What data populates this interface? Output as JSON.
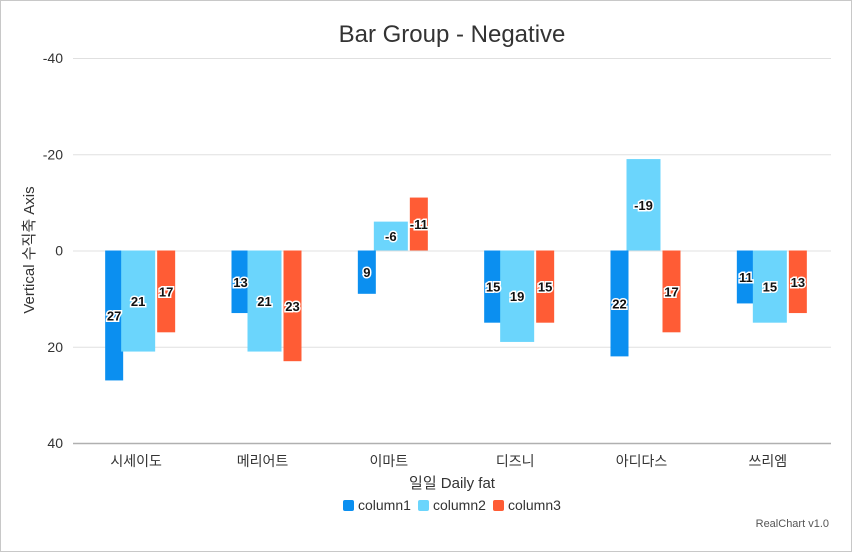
{
  "chart_data": {
    "type": "bar",
    "title": "Bar Group - Negative",
    "xlabel": "일일 Daily fat",
    "ylabel": "Vertical 수직축 Axis",
    "categories": [
      "시세이도",
      "메리어트",
      "이마트",
      "디즈니",
      "아디다스",
      "쓰리엠"
    ],
    "series": [
      {
        "name": "column1",
        "color": "#0b8ff0",
        "values": [
          27,
          13,
          9,
          15,
          22,
          11
        ]
      },
      {
        "name": "column2",
        "color": "#6bd5fc",
        "values": [
          21,
          21,
          -6,
          19,
          -19,
          15
        ]
      },
      {
        "name": "column3",
        "color": "#ff5c35",
        "values": [
          17,
          23,
          -11,
          15,
          17,
          13
        ]
      }
    ],
    "ylim": [
      -40,
      40
    ],
    "y_axis_reversed": true,
    "yticks": [
      -40,
      -20,
      0,
      20,
      40
    ],
    "grid": true,
    "legend_position": "bottom",
    "credit": "RealChart v1.0"
  }
}
